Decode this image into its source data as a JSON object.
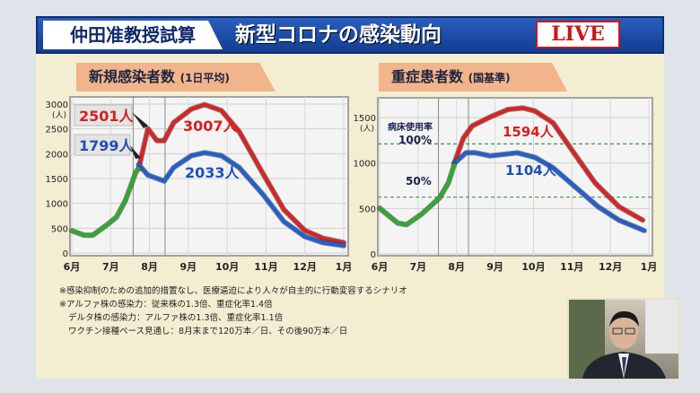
{
  "header": {
    "presenter": "仲田准教授試算",
    "title": "新型コロナの感染動向",
    "live_badge": "LIVE"
  },
  "notes": [
    "※感染抑制のための追加的措置なし、医療逼迫により人々が自主的に行動変容するシナリオ",
    "※アルファ株の感染力：従来株の1.3倍、重症化率1.4倍",
    "デルタ株の感染力：アルファ株の1.3倍、重症化率1.1倍",
    "ワクチン接種ペース見通し：8月末まで120万本／日、その後90万本／日"
  ],
  "colors": {
    "observed": "#2faa2f",
    "red_series": "#e02020",
    "blue_series": "#1f5fd0",
    "threshold": "#3a9a3a",
    "panel": "#f3edd2",
    "tag": "#f2b48a"
  },
  "chart_data": [
    {
      "type": "line",
      "title": "新規感染者数",
      "subtitle": "(1日平均)",
      "yunit": "(人)",
      "ylim": [
        0,
        3000
      ],
      "yticks": [
        0,
        500,
        1000,
        1500,
        2000,
        2500,
        3000
      ],
      "xticks": [
        "6月",
        "7月",
        "8月",
        "9月",
        "10月",
        "11月",
        "12月",
        "1月"
      ],
      "grid": true,
      "series": [
        {
          "color": "#2faa2f",
          "points": [
            [
              0,
              450
            ],
            [
              0.31,
              360
            ],
            [
              0.54,
              360
            ],
            [
              0.92,
              575
            ],
            [
              1.15,
              725
            ],
            [
              1.38,
              1055
            ],
            [
              1.65,
              1630
            ],
            [
              1.72,
              1700
            ]
          ]
        },
        {
          "color": "#e02020",
          "points": [
            [
              1.72,
              1700
            ],
            [
              1.96,
              2505
            ],
            [
              2.19,
              2265
            ],
            [
              2.38,
              2265
            ],
            [
              2.62,
              2625
            ],
            [
              3.08,
              2900
            ],
            [
              3.42,
              2990
            ],
            [
              3.85,
              2870
            ],
            [
              4.31,
              2445
            ],
            [
              4.92,
              1600
            ],
            [
              5.46,
              875
            ],
            [
              6,
              453
            ],
            [
              6.46,
              300
            ],
            [
              7,
              210
            ]
          ]
        },
        {
          "color": "#1f5fd0",
          "points": [
            [
              1.72,
              1780
            ],
            [
              1.96,
              1570
            ],
            [
              2.38,
              1450
            ],
            [
              2.62,
              1720
            ],
            [
              3.08,
              1960
            ],
            [
              3.42,
              2020
            ],
            [
              3.85,
              1960
            ],
            [
              4.31,
              1720
            ],
            [
              4.92,
              1180
            ],
            [
              5.46,
              635
            ],
            [
              6,
              330
            ],
            [
              6.46,
              210
            ],
            [
              7,
              150
            ]
          ]
        }
      ],
      "markers": [
        1.58,
        2.4
      ],
      "annotations": {
        "red_initial": "2501人",
        "blue_initial": "1799人",
        "red_peak": "3007人",
        "blue_peak": "2033人"
      }
    },
    {
      "type": "line",
      "title": "重症患者数",
      "subtitle": "(国基準)",
      "yunit": "(人)",
      "ylim": [
        0,
        1600
      ],
      "yticks": [
        0,
        500,
        1000,
        1500
      ],
      "xticks": [
        "6月",
        "7月",
        "8月",
        "9月",
        "10月",
        "11月",
        "12月",
        "1月"
      ],
      "grid": true,
      "series": [
        {
          "color": "#2faa2f",
          "points": [
            [
              0,
              503
            ],
            [
              0.47,
              339
            ],
            [
              0.7,
              322
            ],
            [
              1.09,
              437
            ],
            [
              1.56,
              618
            ],
            [
              1.79,
              783
            ],
            [
              1.94,
              980
            ]
          ]
        },
        {
          "color": "#e02020",
          "points": [
            [
              1.94,
              997
            ],
            [
              2.18,
              1276
            ],
            [
              2.41,
              1408
            ],
            [
              2.88,
              1507
            ],
            [
              3.34,
              1589
            ],
            [
              3.73,
              1605
            ],
            [
              4.04,
              1572
            ],
            [
              4.51,
              1441
            ],
            [
              5.05,
              1112
            ],
            [
              5.6,
              783
            ],
            [
              6.22,
              520
            ],
            [
              6.84,
              372
            ]
          ]
        },
        {
          "color": "#1f5fd0",
          "points": [
            [
              1.94,
              997
            ],
            [
              2.25,
              1112
            ],
            [
              2.49,
              1112
            ],
            [
              2.88,
              1079
            ],
            [
              3.58,
              1112
            ],
            [
              4.04,
              1062
            ],
            [
              4.51,
              947
            ],
            [
              5.05,
              750
            ],
            [
              5.68,
              520
            ],
            [
              6.22,
              372
            ],
            [
              6.88,
              257
            ]
          ]
        }
      ],
      "markers": [
        1.53,
        2.31
      ],
      "thresholds": [
        {
          "value": 1210,
          "label": "100%"
        },
        {
          "value": 625,
          "label": "50%"
        }
      ],
      "threshold_title": "病床使用率",
      "annotations": {
        "red_peak": "1594人",
        "blue_peak": "1104人"
      }
    }
  ]
}
